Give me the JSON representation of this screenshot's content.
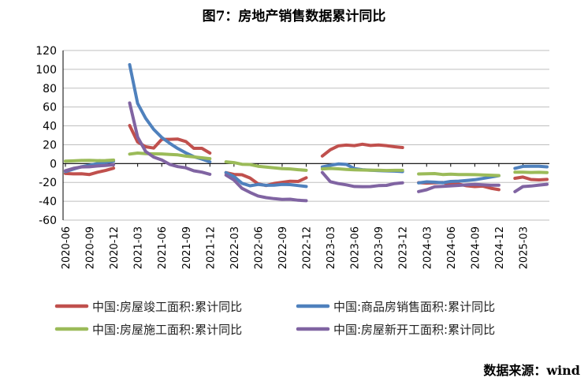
{
  "title": "图7：房地产销售数据累计同比",
  "source": "数据来源：wind",
  "chart_data": {
    "type": "line",
    "ylim": [
      -60,
      120
    ],
    "yticks": [
      -60,
      -40,
      -20,
      0,
      20,
      40,
      60,
      80,
      100,
      120
    ],
    "legend_position": "bottom",
    "x": [
      "2020-06",
      "2020-07",
      "2020-08",
      "2020-09",
      "2020-10",
      "2020-11",
      "2020-12",
      "2021-01",
      "2021-02",
      "2021-03",
      "2021-04",
      "2021-05",
      "2021-06",
      "2021-07",
      "2021-08",
      "2021-09",
      "2021-10",
      "2021-11",
      "2021-12",
      "2022-01",
      "2022-02",
      "2022-03",
      "2022-04",
      "2022-05",
      "2022-06",
      "2022-07",
      "2022-08",
      "2022-09",
      "2022-10",
      "2022-11",
      "2022-12",
      "2023-01",
      "2023-02",
      "2023-03",
      "2023-04",
      "2023-05",
      "2023-06",
      "2023-07",
      "2023-08",
      "2023-09",
      "2023-10",
      "2023-11",
      "2023-12",
      "2024-01",
      "2024-02",
      "2024-03",
      "2024-04",
      "2024-05",
      "2024-06",
      "2024-07",
      "2024-08",
      "2024-09",
      "2024-10",
      "2024-11",
      "2024-12",
      "2025-01",
      "2025-02",
      "2025-03",
      "2025-04",
      "2025-05",
      "2025-06"
    ],
    "xtick_labels": [
      "2020-06",
      "2020-09",
      "2020-12",
      "2021-03",
      "2021-06",
      "2021-09",
      "2021-12",
      "2022-03",
      "2022-06",
      "2022-09",
      "2022-12",
      "2023-03",
      "2023-06",
      "2023-09",
      "2023-12",
      "2024-03",
      "2024-06",
      "2024-09",
      "2024-12",
      "2025-03"
    ],
    "series": [
      {
        "name": "中国:房屋竣工面积:累计同比",
        "color": "#c0504d",
        "values": [
          -10.5,
          -10.9,
          -10.8,
          -11.6,
          -9.2,
          -7.3,
          -4.9,
          null,
          40.4,
          22.9,
          17.9,
          16.4,
          25.7,
          25.7,
          26.0,
          23.4,
          16.2,
          16.2,
          11.2,
          null,
          -9.6,
          -11.5,
          -11.9,
          -15.3,
          -21.5,
          -23.3,
          -21.1,
          -19.9,
          -18.7,
          -19.0,
          -15.0,
          null,
          8.0,
          14.7,
          18.8,
          19.6,
          19.0,
          20.5,
          19.2,
          19.8,
          19.0,
          17.9,
          17.0,
          null,
          -20.2,
          -20.7,
          -20.4,
          -20.1,
          -21.8,
          -21.8,
          -23.6,
          -24.4,
          -23.9,
          -26.2,
          -27.7,
          null,
          -15.6,
          -14.3,
          -16.9,
          -17.3,
          -16.8
        ]
      },
      {
        "name": "中国:商品房销售面积:累计同比",
        "color": "#4f81bd",
        "values": [
          -8.4,
          -5.8,
          -3.3,
          -1.8,
          0.0,
          1.3,
          2.6,
          null,
          104.9,
          63.8,
          48.1,
          36.3,
          27.7,
          21.5,
          15.9,
          11.3,
          7.3,
          4.8,
          1.9,
          null,
          -9.6,
          -13.8,
          -20.9,
          -23.6,
          -22.2,
          -23.1,
          -23.0,
          -22.2,
          -22.3,
          -23.3,
          -24.3,
          null,
          -3.6,
          -1.8,
          -0.4,
          -0.9,
          -5.3,
          -6.5,
          -7.1,
          -7.5,
          -7.8,
          -8.0,
          -8.5,
          null,
          -20.5,
          -19.4,
          -19.7,
          -20.3,
          -19.0,
          -18.6,
          -18.0,
          -17.1,
          -15.8,
          -14.3,
          -12.9,
          null,
          -5.1,
          -3.0,
          -2.8,
          -2.9,
          -3.5
        ]
      },
      {
        "name": "中国:房屋施工面积:累计同比",
        "color": "#9bbb59",
        "values": [
          2.6,
          2.9,
          3.3,
          3.4,
          3.1,
          3.2,
          3.7,
          null,
          10.1,
          11.2,
          10.5,
          10.3,
          10.2,
          9.7,
          9.2,
          7.9,
          7.1,
          6.1,
          5.2,
          null,
          1.9,
          1.0,
          -0.7,
          -1.0,
          -2.8,
          -3.7,
          -4.5,
          -5.3,
          -5.7,
          -6.5,
          -7.2,
          null,
          -5.7,
          -5.2,
          -5.6,
          -6.2,
          -6.6,
          -6.8,
          -7.1,
          -7.1,
          -7.3,
          -7.2,
          -7.2,
          null,
          -11.0,
          -10.8,
          -10.6,
          -11.6,
          -11.3,
          -11.6,
          -11.6,
          -11.8,
          -12.0,
          -12.4,
          -12.7,
          null,
          -9.1,
          -9.1,
          -9.4,
          -9.3,
          -9.5
        ]
      },
      {
        "name": "中国:房屋新开工面积:累计同比",
        "color": "#8064a2",
        "values": [
          -7.6,
          -5.1,
          -3.6,
          -3.4,
          -2.6,
          -2.0,
          -1.2,
          null,
          64.3,
          28.2,
          12.8,
          6.9,
          3.8,
          -0.9,
          -3.2,
          -4.5,
          -7.7,
          -9.1,
          -11.4,
          null,
          -12.2,
          -17.5,
          -26.3,
          -30.6,
          -34.4,
          -36.1,
          -37.2,
          -38.0,
          -37.8,
          -38.9,
          -39.4,
          null,
          -9.4,
          -19.2,
          -21.2,
          -22.6,
          -24.3,
          -24.5,
          -24.4,
          -23.4,
          -23.2,
          -21.2,
          -20.4,
          null,
          -29.7,
          -27.8,
          -24.6,
          -24.2,
          -23.7,
          -23.2,
          -22.5,
          -22.2,
          -22.6,
          -23.0,
          -23.0,
          null,
          -29.8,
          -24.4,
          -23.8,
          -22.8,
          -22.0
        ]
      }
    ]
  }
}
